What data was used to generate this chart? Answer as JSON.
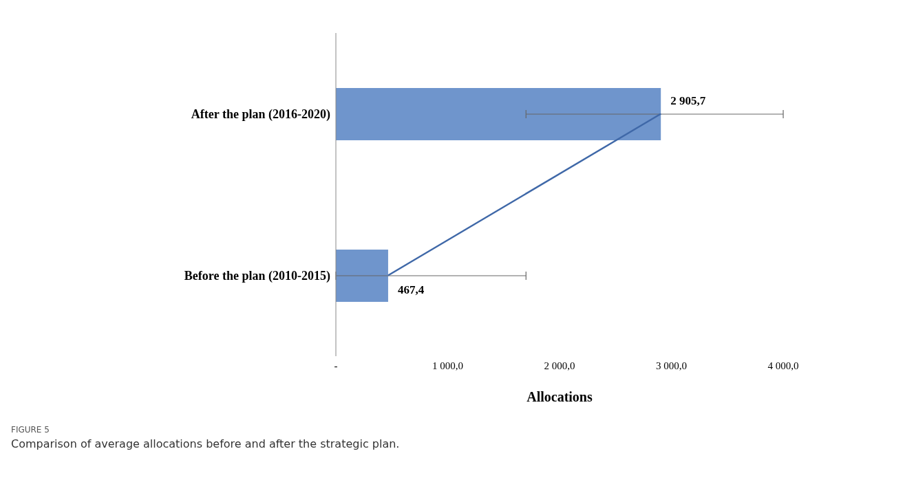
{
  "chart_data": {
    "type": "bar",
    "orientation": "horizontal",
    "xlabel": "Allocations",
    "categories": [
      "After the plan (2016-2020)",
      "Before the plan (2010-2015)"
    ],
    "series": [
      {
        "color": "#6f95cc",
        "values": [
          2905.7,
          467.4
        ],
        "errors": [
          [
            1700,
            4000
          ],
          [
            0,
            1700
          ]
        ],
        "value_labels": [
          "2 905,7",
          "467,4"
        ]
      },
      {
        "type": "line",
        "color": "#3f68a8",
        "values": [
          2905.7,
          467.4
        ]
      }
    ],
    "xlim": [
      0,
      4000
    ],
    "xticks": [
      {
        "value": 0,
        "label": "-"
      },
      {
        "value": 1000,
        "label": "1 000,0"
      },
      {
        "value": 2000,
        "label": "2 000,0"
      },
      {
        "value": 3000,
        "label": "3 000,0"
      },
      {
        "value": 4000,
        "label": "4 000,0"
      }
    ],
    "grid": false,
    "legend": false,
    "marker": "none",
    "annotations": [
      "FIGURE 5",
      "Comparison of average allocations before and after the strategic plan."
    ]
  }
}
